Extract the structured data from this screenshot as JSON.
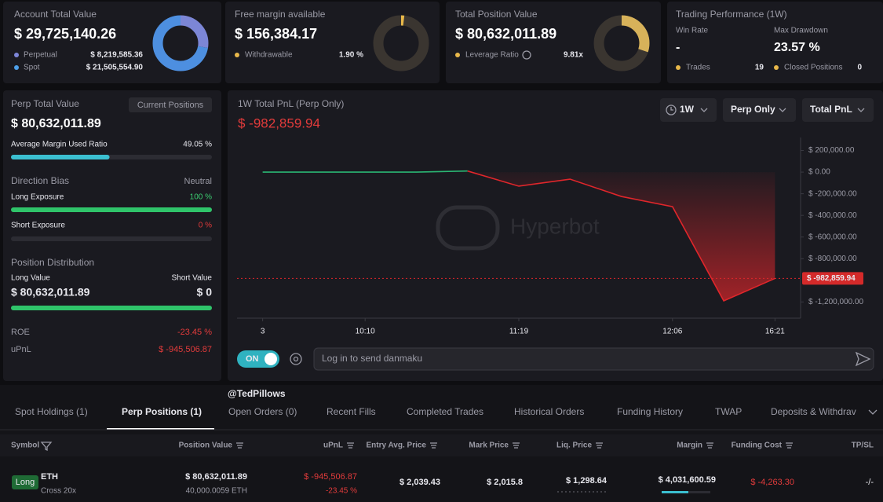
{
  "account": {
    "title": "Account Total Value",
    "value": "$ 29,725,140.26",
    "perpetual": {
      "name": "Perpetual",
      "amount": {
        "value": 8219585.36,
        "label": "$ 8,219,585.36"
      }
    },
    "spot": {
      "name": "Spot",
      "amount": {
        "value": 21505554.9,
        "label": "$ 21,505,554.90"
      }
    }
  },
  "margin": {
    "title": "Free margin available",
    "value": "$ 156,384.17",
    "withdrawable_name": "Withdrawable",
    "withdrawable": {
      "value": 1.9,
      "label": "1.90 %"
    }
  },
  "position": {
    "title": "Total Position Value",
    "value": "$ 80,632,011.89",
    "leverage_name": "Leverage Ratio",
    "leverage": "9.81x"
  },
  "performance": {
    "title": "Trading Performance (1W)",
    "win_rate_name": "Win Rate",
    "win_rate": "-",
    "drawdown_name": "Max Drawdown",
    "drawdown": "23.57 %",
    "trades_name": "Trades",
    "trades": "19",
    "closed_name": "Closed Positions",
    "closed": "0"
  },
  "perp": {
    "title": "Perp Total Value",
    "button": "Current Positions",
    "value": "$ 80,632,011.89",
    "margin_ratio_name": "Average Margin Used Ratio",
    "margin_ratio": {
      "value": 49.05,
      "label": "49.05 %"
    },
    "bias_title": "Direction Bias",
    "bias": "Neutral",
    "long_exposure_name": "Long Exposure",
    "long_exposure": {
      "value": 100,
      "label": "100 %"
    },
    "short_exposure_name": "Short Exposure",
    "short_exposure": {
      "value": 0,
      "label": "0 %"
    },
    "distribution_title": "Position Distribution",
    "long_value_name": "Long Value",
    "short_value_name": "Short Value",
    "long_value": {
      "value": 80632011.89,
      "label": "$ 80,632,011.89"
    },
    "short_value": {
      "value": 0,
      "label": "$ 0"
    },
    "roe_name": "ROE",
    "roe": "-23.45 %",
    "upnl_name": "uPnL",
    "upnl": "$ -945,506.87"
  },
  "chart_panel": {
    "title": "1W Total PnL (Perp Only)",
    "pnl": "$ -982,859.94",
    "range": "1W",
    "scope": "Perp Only",
    "metric": "Total PnL",
    "watermark": "Hyperbot",
    "toggle": "ON",
    "input_placeholder": "Log in to send danmaku"
  },
  "chart_data": {
    "type": "line",
    "x": [
      0,
      1.6,
      3,
      4,
      5,
      6,
      7,
      8,
      9,
      10
    ],
    "values": [
      0,
      0,
      0,
      10000,
      -130000,
      -65000,
      -225000,
      -320000,
      -1190000,
      -982859.94
    ],
    "up_color": "#2bb673",
    "down_color": "#e0262b",
    "xlim": [
      -0.5,
      10.5
    ],
    "xticks": [
      {
        "value": 0,
        "label": "3"
      },
      {
        "value": 2,
        "label": "10:10"
      },
      {
        "value": 5,
        "label": "11:19"
      },
      {
        "value": 8,
        "label": "12:06"
      },
      {
        "value": 10,
        "label": "16:21"
      }
    ],
    "ylim": [
      -1350000,
      320000
    ],
    "yticks": [
      {
        "value": 200000,
        "label": "$ 200,000.00"
      },
      {
        "value": 0,
        "label": "$ 0.00"
      },
      {
        "value": -200000,
        "label": "$ -200,000.00"
      },
      {
        "value": -400000,
        "label": "$ -400,000.00"
      },
      {
        "value": -600000,
        "label": "$ -600,000.00"
      },
      {
        "value": -800000,
        "label": "$ -800,000.00"
      },
      {
        "value": -1200000,
        "label": "$ -1,200,000.00"
      }
    ],
    "last_value": {
      "value": -982859.94,
      "label": "$ -982,859.94"
    }
  },
  "watermark_user": "@TedPillows",
  "tabs": [
    "Spot Holdings (1)",
    "Perp Positions (1)",
    "Open Orders (0)",
    "Recent Fills",
    "Completed Trades",
    "Historical Orders",
    "Funding History",
    "TWAP",
    "Deposits & Withdrav"
  ],
  "table": {
    "columns": [
      "Symbol",
      "Position Value",
      "uPnL",
      "Entry Avg. Price",
      "Mark Price",
      "Liq. Price",
      "Margin",
      "Funding Cost",
      "TP/SL"
    ],
    "rows": [
      {
        "side": "Long",
        "symbol": "ETH",
        "mode": "Cross 20x",
        "position_value": "$ 80,632,011.89",
        "size": "40,000.0059 ETH",
        "upnl": "$ -945,506.87",
        "upnl_pct": "-23.45 %",
        "entry": "$ 2,039.43",
        "mark": "$ 2,015.8",
        "liq": "$ 1,298.64",
        "margin": "$ 4,031,600.59",
        "funding": "$ -4,263.30",
        "tpsl": "-/-"
      }
    ]
  }
}
